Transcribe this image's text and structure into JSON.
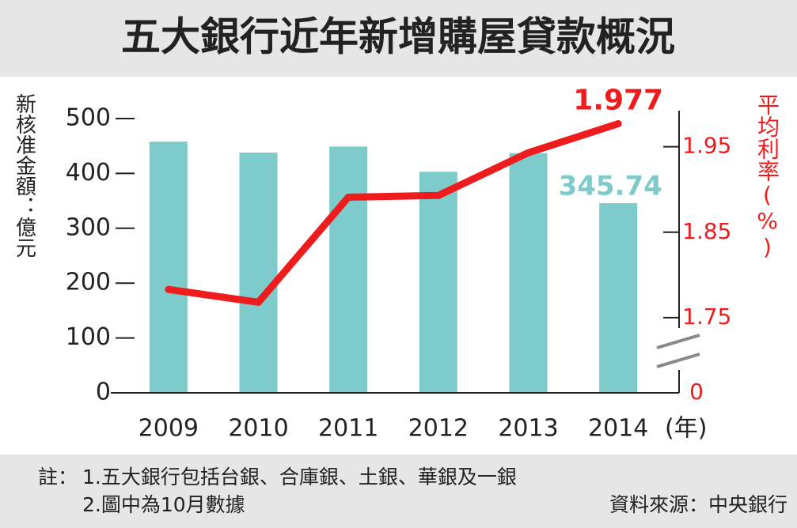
{
  "chart_data": {
    "type": "bar_line",
    "title": "五大銀行近年新增購屋貸款概況",
    "y_label": "新核准金額：億元",
    "y2_label": "平均利率(%)",
    "x_label": "(年)",
    "categories": [
      "2009",
      "2010",
      "2011",
      "2012",
      "2013",
      "2014"
    ],
    "series": [
      {
        "type": "bar",
        "color": "#7ecbcb",
        "values": [
          458,
          438,
          449,
          403,
          437,
          345.74
        ]
      },
      {
        "type": "line",
        "axis": "y2",
        "color": "#ee1c1c",
        "values": [
          1.783,
          1.768,
          1.891,
          1.893,
          1.943,
          1.977
        ]
      }
    ],
    "ylim": [
      0,
      500
    ],
    "yticks": [
      0,
      100,
      200,
      300,
      400,
      500
    ],
    "y2lim": [
      1.662,
      1.983
    ],
    "y2ticks": [
      0,
      1.75,
      1.85,
      1.95
    ],
    "axis_break": true,
    "labeled_points": [
      {
        "series": 0,
        "index": 5
      },
      {
        "series": 1,
        "index": 5
      }
    ],
    "notes": {
      "prefix": "註：",
      "items": [
        "1.五大銀行包括台銀、合庫銀、土銀、華銀及一銀",
        "2.圖中為10月數據"
      ]
    },
    "source": "資料來源：中央銀行"
  }
}
